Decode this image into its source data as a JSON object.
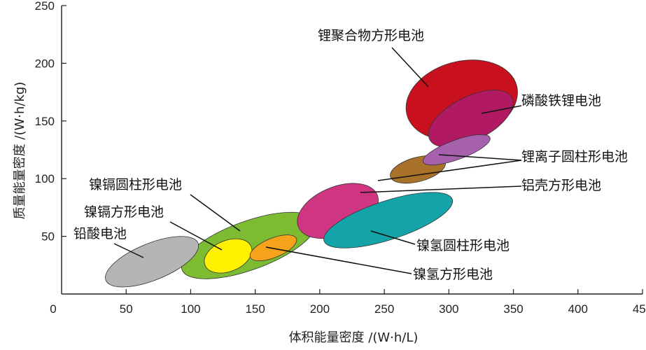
{
  "chart_data": {
    "type": "scatter",
    "subtype": "region-ellipses",
    "xlabel": "体积能量密度 /(W·h/L)",
    "ylabel": "质量能量密度 /(W·h/kg)",
    "xlim": [
      0,
      450
    ],
    "ylim": [
      0,
      250
    ],
    "x_ticks": [
      50,
      100,
      150,
      200,
      250,
      300,
      350,
      400,
      450
    ],
    "y_ticks": [
      50,
      100,
      150,
      200,
      250
    ],
    "origin_label": "0",
    "grid": false,
    "regions": [
      {
        "name": "铅酸电池",
        "center": [
          70,
          28
        ],
        "x_extent": [
          40,
          110
        ],
        "y_extent": [
          10,
          48
        ],
        "color": "#b5b5b5"
      },
      {
        "name": "镍镉圆柱形电池",
        "center": [
          145,
          42
        ],
        "x_extent": [
          85,
          185
        ],
        "y_extent": [
          15,
          65
        ],
        "color": "#7dbb32"
      },
      {
        "name": "镍镉方形电池",
        "center": [
          129,
          33
        ],
        "x_extent": [
          110,
          145
        ],
        "y_extent": [
          18,
          50
        ],
        "color": "#fff200"
      },
      {
        "name": "镍氢方形电池",
        "center": [
          164,
          40
        ],
        "x_extent": [
          145,
          180
        ],
        "y_extent": [
          30,
          50
        ],
        "color": "#f7a21b"
      },
      {
        "name": "铝壳方形电池",
        "center": [
          214,
          72
        ],
        "x_extent": [
          185,
          245
        ],
        "y_extent": [
          45,
          95
        ],
        "color": "#cf3580"
      },
      {
        "name": "镍氢圆柱形电池",
        "center": [
          253,
          64
        ],
        "x_extent": [
          205,
          300
        ],
        "y_extent": [
          45,
          85
        ],
        "color": "#14a3a8"
      },
      {
        "name": "锂离子圆柱形电池",
        "center": [
          276,
          108
        ],
        "x_extent": [
          250,
          290
        ],
        "y_extent": [
          95,
          120
        ],
        "color": "#a8722a"
      },
      {
        "name": "磷酸铁锂电池",
        "center": [
          317,
          152
        ],
        "x_extent": [
          285,
          350
        ],
        "y_extent": [
          130,
          175
        ],
        "color": "#b11a63"
      },
      {
        "name": "锂离子圆柱形电池",
        "center": [
          306,
          125
        ],
        "x_extent": [
          285,
          335
        ],
        "y_extent": [
          115,
          135
        ],
        "color": "#a660ac"
      },
      {
        "name": "锂聚合物方形电池",
        "center": [
          310,
          168
        ],
        "x_extent": [
          270,
          350
        ],
        "y_extent": [
          135,
          215
        ],
        "color": "#c8101e"
      }
    ],
    "labels": [
      {
        "text": "锂聚合物方形电池"
      },
      {
        "text": "磷酸铁锂电池"
      },
      {
        "text": "锂离子圆柱形电池"
      },
      {
        "text": "铝壳方形电池"
      },
      {
        "text": "镍镉圆柱形电池"
      },
      {
        "text": "镍镉方形电池"
      },
      {
        "text": "铅酸电池"
      },
      {
        "text": "镍氢圆柱形电池"
      },
      {
        "text": "镍氢方形电池"
      }
    ]
  }
}
